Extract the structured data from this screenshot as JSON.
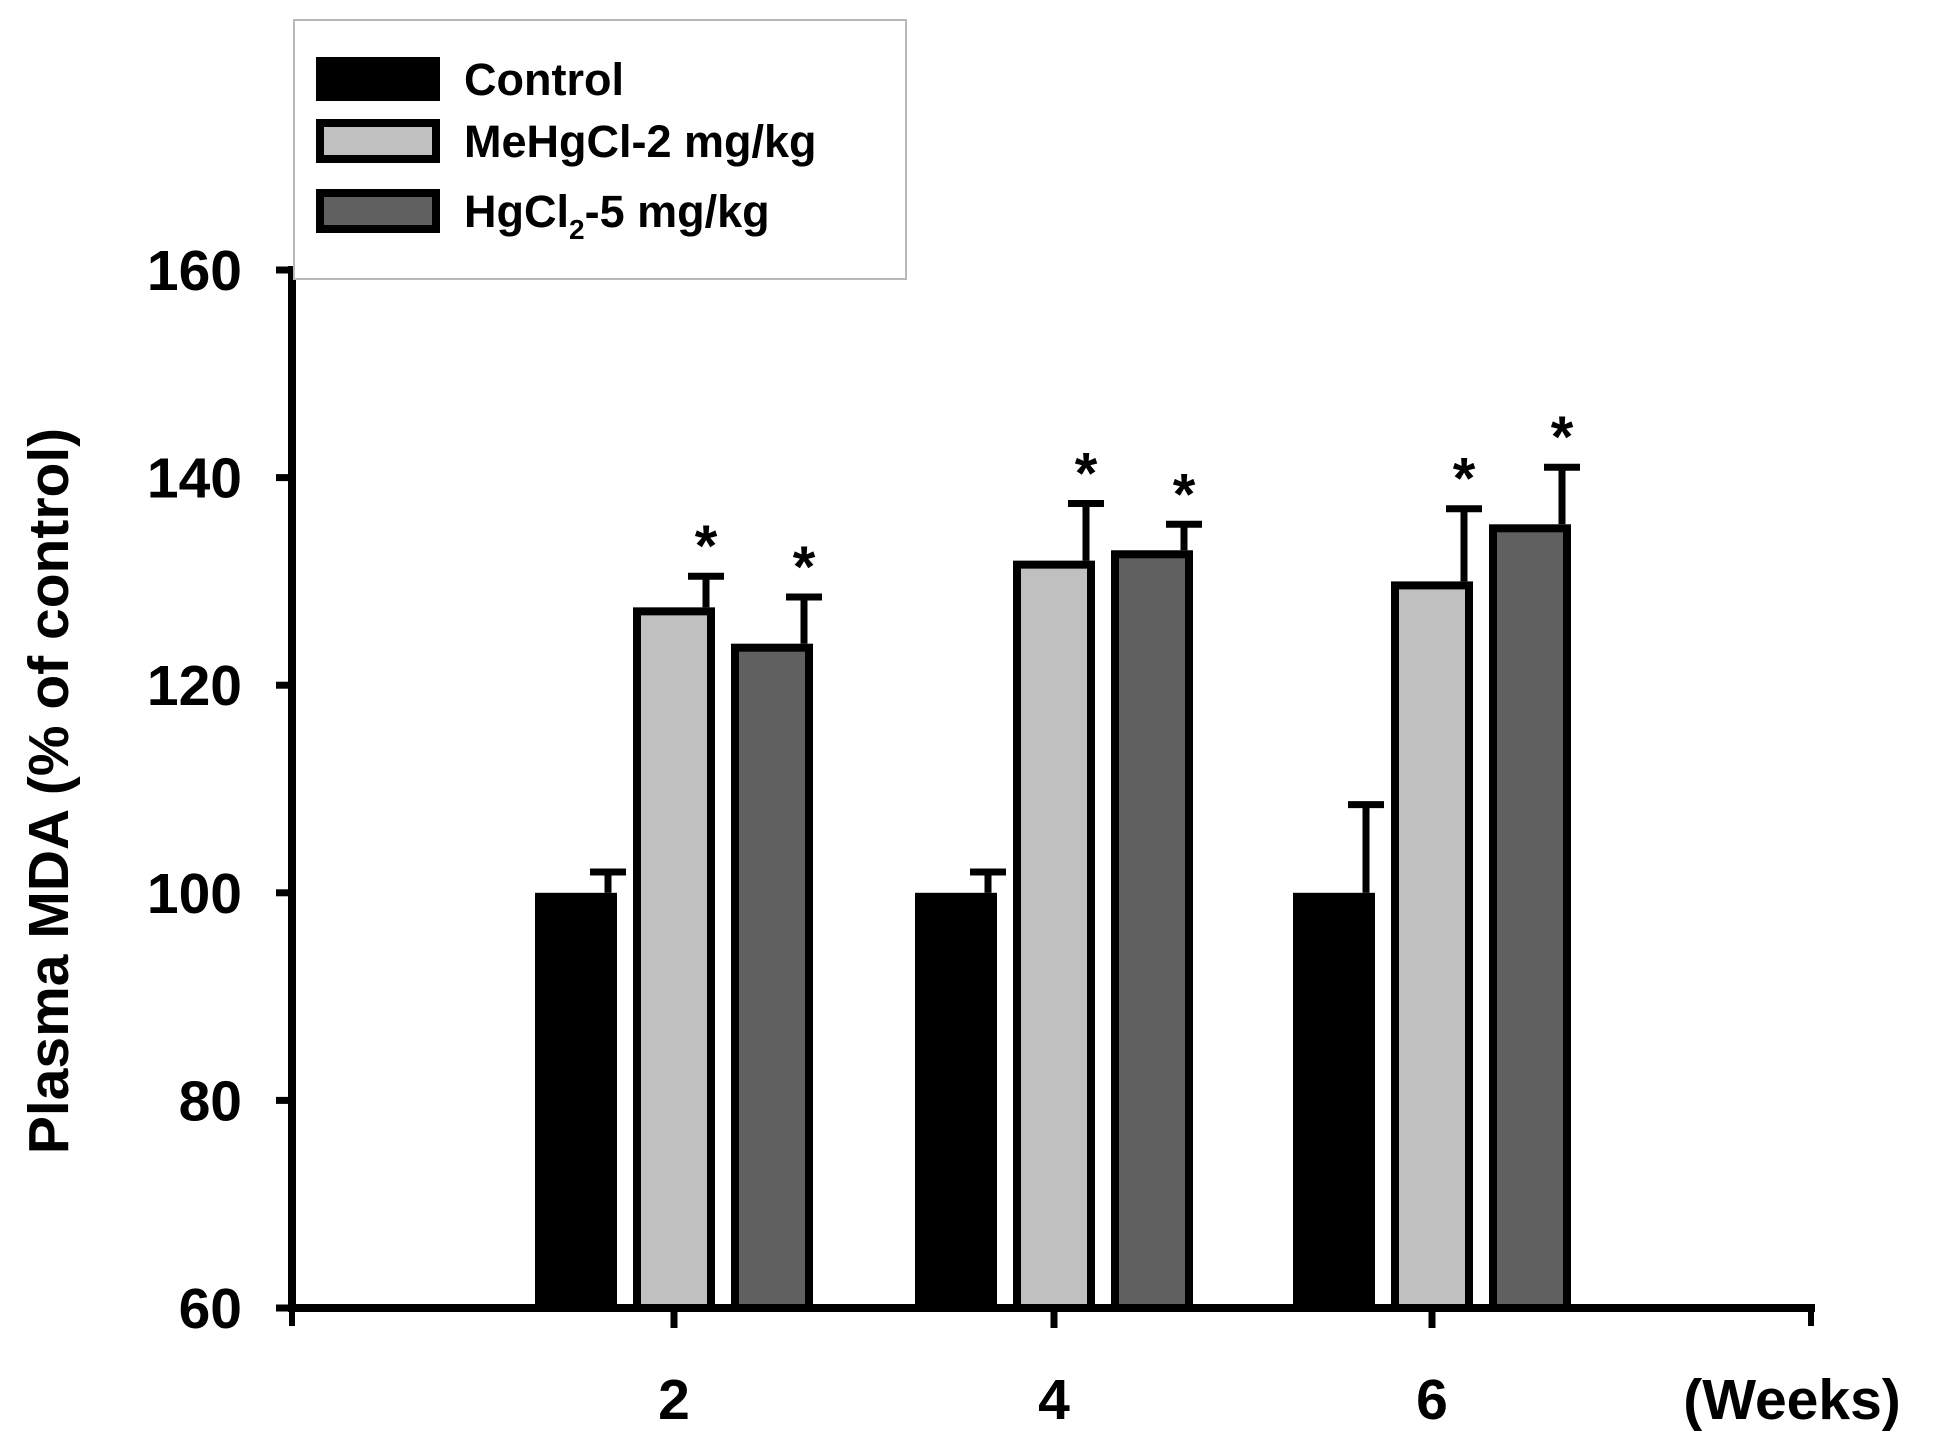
{
  "chart_data": {
    "type": "bar",
    "title": "",
    "xlabel": "(Weeks)",
    "ylabel": "Plasma MDA (% of control)",
    "ylim": [
      60,
      160
    ],
    "yticks": [
      60,
      80,
      100,
      120,
      140,
      160
    ],
    "categories": [
      "2",
      "4",
      "6"
    ],
    "series": [
      {
        "name": "Control",
        "color": "#000000",
        "values": [
          100,
          100,
          100
        ],
        "errors": [
          2,
          2,
          8.5
        ],
        "significant": [
          false,
          false,
          false
        ]
      },
      {
        "name": "MeHgCl-2 mg/kg",
        "color": "#c0c0c0",
        "values": [
          127.5,
          132,
          130
        ],
        "errors": [
          3,
          5.5,
          7
        ],
        "significant": [
          true,
          true,
          true
        ]
      },
      {
        "name": "HgCl2-5 mg/kg",
        "color": "#606060",
        "values": [
          124,
          133,
          135.5
        ],
        "errors": [
          4.5,
          2.5,
          5.5
        ],
        "significant": [
          true,
          true,
          true
        ]
      }
    ],
    "legend": {
      "position": "top-left",
      "labels": [
        {
          "main": "Control",
          "sub": "",
          "rest": ""
        },
        {
          "main": "MeHgCl-2 mg/kg",
          "sub": "",
          "rest": ""
        },
        {
          "main": "HgCl",
          "sub": "2",
          "rest": "-5 mg/kg"
        }
      ]
    },
    "significance_marker": "*"
  }
}
